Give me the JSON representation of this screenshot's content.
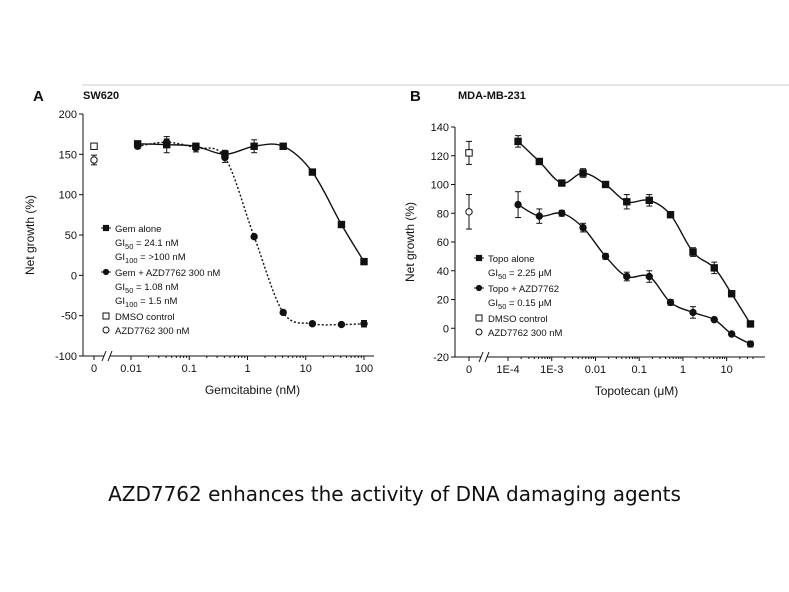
{
  "caption": "AZD7762 enhances the activity of DNA damaging agents",
  "chart_data": [
    {
      "type": "scatter",
      "panel_letter": "A",
      "title": "SW620",
      "xlabel": "Gemcitabine (nM)",
      "ylabel": "Net growth (%)",
      "x_scale": "log",
      "xlim": [
        0.01,
        100
      ],
      "ylim": [
        -100,
        200
      ],
      "yticks": [
        -100,
        -50,
        0,
        50,
        100,
        150,
        200
      ],
      "yticklabels": [
        "-100",
        "-50",
        "0",
        "50",
        "100",
        "150",
        "200"
      ],
      "xticks": [
        0.01,
        0.1,
        1,
        10,
        100
      ],
      "xticklabels": [
        "0.01",
        "0.1",
        "1",
        "10",
        "100"
      ],
      "zero_label": "0",
      "series": [
        {
          "name": "Gem alone",
          "marker": "square",
          "line": "solid",
          "x": [
            0.013,
            0.041,
            0.13,
            0.41,
            1.3,
            4.1,
            13,
            41,
            100
          ],
          "y": [
            163,
            162,
            160,
            150,
            160,
            160,
            128,
            63,
            17
          ],
          "err": [
            3,
            10,
            3,
            5,
            8,
            2,
            3,
            2,
            1
          ],
          "gi50_label": "GI50",
          "gi50_value": "= 24.1 nM",
          "gi100_label": "GI100",
          "gi100_value": "= >100 nM"
        },
        {
          "name": "Gem + AZD7762 300 nM",
          "marker": "circle",
          "line": "dashed",
          "x": [
            0.013,
            0.041,
            0.13,
            0.41,
            1.3,
            4.1,
            13,
            41,
            100
          ],
          "y": [
            160,
            165,
            158,
            146,
            48,
            -46,
            -60,
            -61,
            -60
          ],
          "err": [
            3,
            4,
            5,
            6,
            2,
            2,
            2,
            2,
            4
          ],
          "gi50_label": "GI50",
          "gi50_value": "= 1.08 nM",
          "gi100_label": "GI100",
          "gi100_value": "= 1.5 nM"
        }
      ],
      "controls": [
        {
          "name": "DMSO control",
          "marker": "open-square",
          "y": 160,
          "err": 3
        },
        {
          "name": "AZD7762 300 nM",
          "marker": "open-circle",
          "y": 143,
          "err": 6
        }
      ]
    },
    {
      "type": "scatter",
      "panel_letter": "B",
      "title": "MDA-MB-231",
      "xlabel": "Topotecan (μM)",
      "ylabel": "Net growth (%)",
      "x_scale": "log",
      "xlim": [
        0.0001,
        40
      ],
      "ylim": [
        -20,
        140
      ],
      "yticks": [
        -20,
        0,
        20,
        40,
        60,
        80,
        100,
        120,
        140
      ],
      "yticklabels": [
        "-20",
        "0",
        "20",
        "40",
        "60",
        "80",
        "100",
        "120",
        "140"
      ],
      "xticks": [
        0.0001,
        0.001,
        0.01,
        0.1,
        1,
        10
      ],
      "xticklabels": [
        "1E-4",
        "1E-3",
        "0.01",
        "0.1",
        "1",
        "10"
      ],
      "zero_label": "0",
      "series": [
        {
          "name": "Topo alone",
          "marker": "square",
          "line": "solid",
          "x": [
            0.00017,
            0.00052,
            0.0017,
            0.0052,
            0.017,
            0.052,
            0.17,
            0.52,
            1.7,
            5.2,
            13,
            35
          ],
          "y": [
            130,
            116,
            101,
            108,
            100,
            88,
            89,
            79,
            53,
            42,
            24,
            3
          ],
          "err": [
            4,
            2,
            2,
            3,
            2,
            5,
            4,
            2,
            3,
            4,
            2,
            2
          ],
          "gi50_label": "GI50",
          "gi50_value": "= 2.25 μM"
        },
        {
          "name": "Topo +   AZD7762",
          "marker": "circle",
          "line": "solid",
          "x": [
            0.00017,
            0.00052,
            0.0017,
            0.0052,
            0.017,
            0.052,
            0.17,
            0.52,
            1.7,
            5.2,
            13,
            35
          ],
          "y": [
            86,
            78,
            80,
            70,
            50,
            36,
            36,
            18,
            11,
            6,
            -4,
            -11
          ],
          "err": [
            9,
            5,
            2,
            3,
            2,
            3,
            4,
            2,
            4,
            1,
            1,
            2
          ],
          "gi50_label": "GI50",
          "gi50_value": "= 0.15 μM"
        }
      ],
      "controls": [
        {
          "name": "DMSO control",
          "marker": "open-square",
          "y": 122,
          "err": 8
        },
        {
          "name": "AZD7762 300 nM",
          "marker": "open-circle",
          "y": 81,
          "err": 12
        }
      ]
    }
  ]
}
